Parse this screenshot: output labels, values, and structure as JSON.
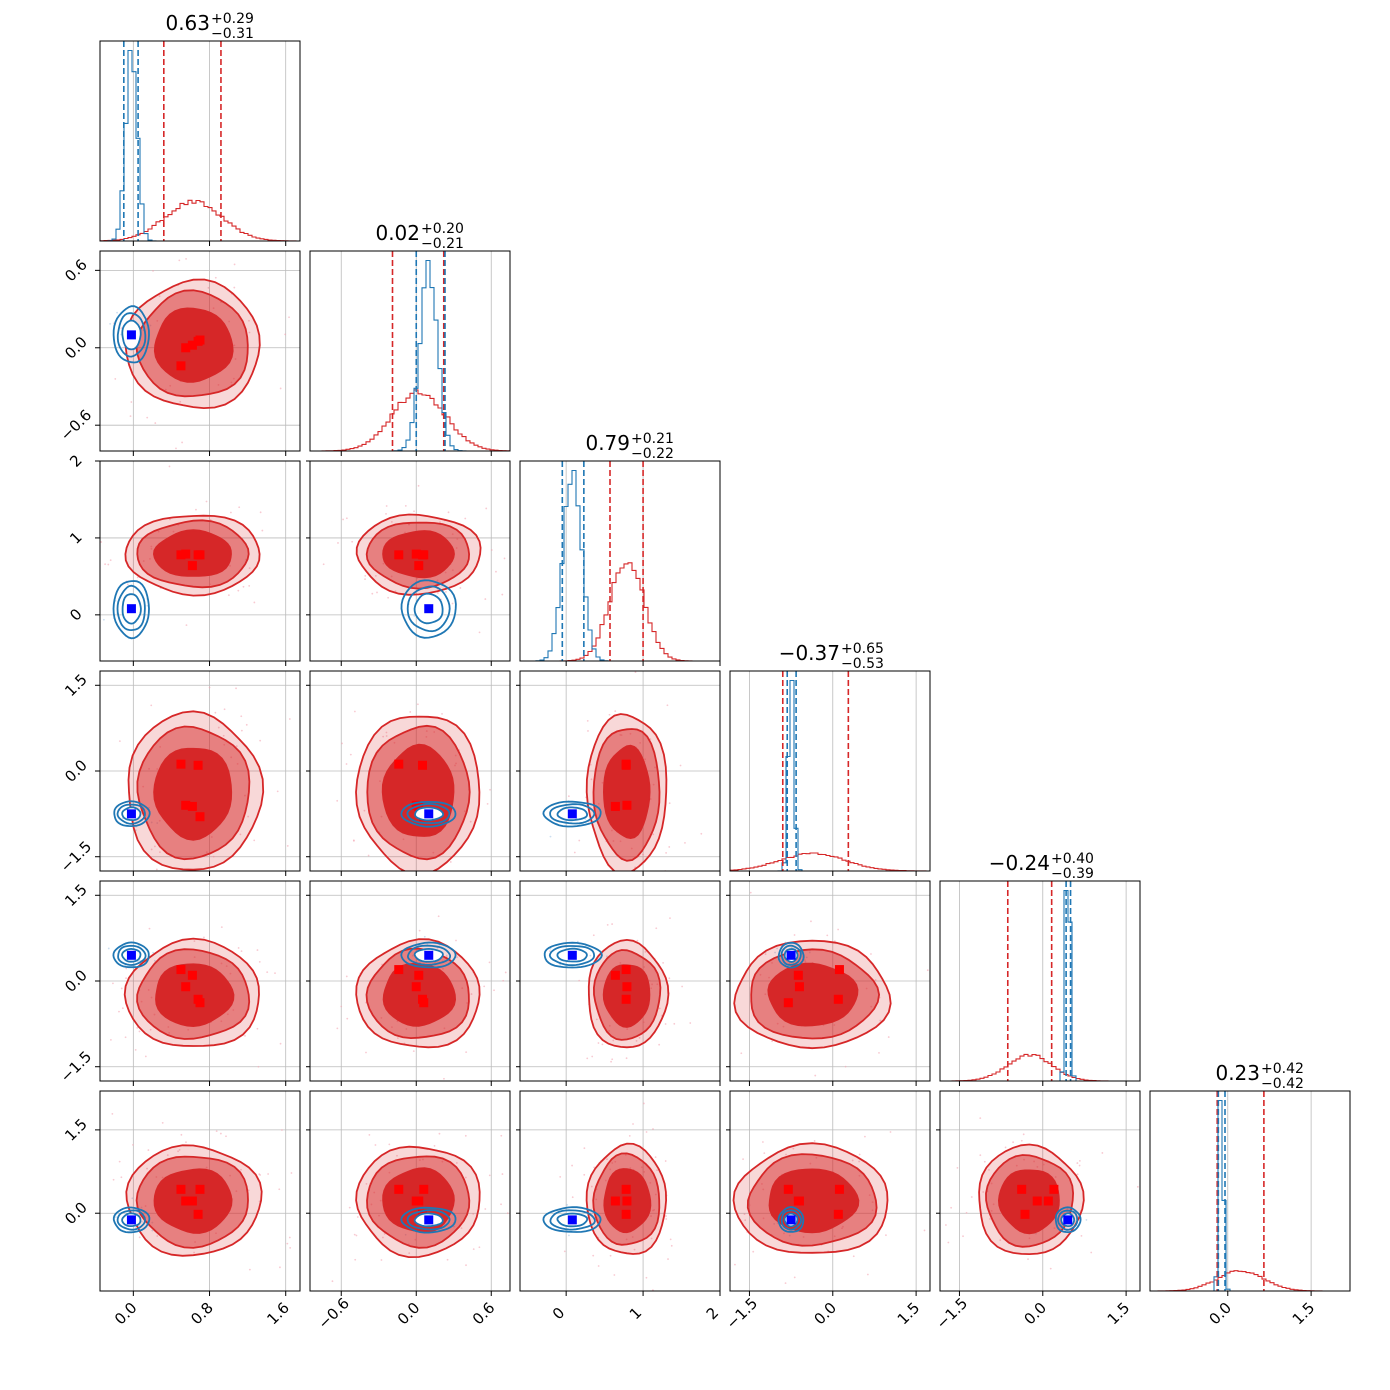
{
  "chart_data": {
    "type": "corner",
    "n_params": 6,
    "colors": {
      "series_red": "#d62728",
      "series_blue": "#1f77b4",
      "marker_red": "#ff0000",
      "marker_blue": "#0000ff",
      "grid": "#bbbbbb"
    },
    "grid": true,
    "titles": [
      {
        "median": "0.63",
        "plus": "+0.29",
        "minus": "−0.31"
      },
      {
        "median": "0.02",
        "plus": "+0.20",
        "minus": "−0.21"
      },
      {
        "median": "0.79",
        "plus": "+0.21",
        "minus": "−0.22"
      },
      {
        "median": "−0.37",
        "plus": "+0.65",
        "minus": "−0.53"
      },
      {
        "median": "−0.24",
        "plus": "+0.40",
        "minus": "−0.39"
      },
      {
        "median": "0.23",
        "plus": "+0.42",
        "minus": "−0.42"
      }
    ],
    "x_ranges": [
      [
        -0.35,
        1.75
      ],
      [
        -0.85,
        0.75
      ],
      [
        -0.6,
        2.0
      ],
      [
        -1.85,
        1.75
      ],
      [
        -1.85,
        1.75
      ],
      [
        -1.4,
        2.2
      ]
    ],
    "y_ranges": [
      null,
      [
        -0.8,
        0.75
      ],
      [
        -0.6,
        2.0
      ],
      [
        -1.75,
        1.75
      ],
      [
        -1.75,
        1.75
      ],
      [
        -1.4,
        2.2
      ]
    ],
    "x_ticks": [
      {
        "values": [
          0.0,
          0.8,
          1.6
        ],
        "labels": [
          "0.0",
          "0.8",
          "1.6"
        ]
      },
      {
        "values": [
          -0.6,
          0.0,
          0.6
        ],
        "labels": [
          "−0.6",
          "0.0",
          "0.6"
        ]
      },
      {
        "values": [
          0,
          1,
          2
        ],
        "labels": [
          "0",
          "1",
          "2"
        ]
      },
      {
        "values": [
          -1.5,
          0.0,
          1.5
        ],
        "labels": [
          "−1.5",
          "0.0",
          "1.5"
        ]
      },
      {
        "values": [
          -1.5,
          0.0,
          1.5
        ],
        "labels": [
          "−1.5",
          "0.0",
          "1.5"
        ]
      },
      {
        "values": [
          0.0,
          1.5
        ],
        "labels": [
          "0.0",
          "1.5"
        ]
      }
    ],
    "y_ticks": [
      null,
      {
        "values": [
          -0.6,
          0.0,
          0.6
        ],
        "labels": [
          "−0.6",
          "0.0",
          "0.6"
        ]
      },
      {
        "values": [
          0,
          1,
          2
        ],
        "labels": [
          "0",
          "1",
          "2"
        ]
      },
      {
        "values": [
          -1.5,
          0.0,
          1.5
        ],
        "labels": [
          "−1.5",
          "0.0",
          "1.5"
        ]
      },
      {
        "values": [
          -1.5,
          0.0,
          1.5
        ],
        "labels": [
          "−1.5",
          "0.0",
          "1.5"
        ]
      },
      {
        "values": [
          0.0,
          1.5
        ],
        "labels": [
          "0.0",
          "1.5"
        ]
      }
    ],
    "series": [
      {
        "color": "red",
        "means": [
          0.63,
          0.02,
          0.79,
          -0.37,
          -0.24,
          0.23
        ],
        "spreads": [
          0.3,
          0.21,
          0.22,
          0.59,
          0.4,
          0.42
        ],
        "quantile_lines": [
          [
            0.32,
            0.92
          ],
          [
            -0.19,
            0.22
          ],
          [
            0.57,
            1.0
          ],
          [
            -0.9,
            0.28
          ],
          [
            -0.63,
            0.16
          ],
          [
            -0.19,
            0.65
          ]
        ],
        "markers": [
          [
            0.5,
            0.55,
            0.62,
            0.68,
            0.7
          ],
          [
            -0.14,
            0.0,
            0.02,
            0.05,
            0.06
          ],
          [
            0.78,
            0.79,
            0.64,
            0.78
          ],
          [
            0.12,
            -0.6,
            -0.62,
            0.1,
            -0.8
          ],
          [
            0.2,
            -0.1,
            0.1,
            -0.32,
            -0.38
          ],
          [
            0.43,
            0.22,
            0.22,
            -0.02
          ]
        ]
      },
      {
        "color": "blue",
        "means": [
          -0.02,
          0.1,
          0.08,
          -0.75,
          0.45,
          -0.12
        ],
        "spreads": [
          0.06,
          0.07,
          0.12,
          0.05,
          0.04,
          0.04
        ],
        "quantile_lines": [
          [
            -0.1,
            0.05
          ],
          [
            0.0,
            0.23
          ],
          [
            -0.05,
            0.23
          ],
          [
            -0.82,
            -0.66
          ],
          [
            0.42,
            0.5
          ],
          [
            -0.17,
            -0.05
          ]
        ],
        "truth": [
          -0.02,
          0.1,
          0.08,
          -0.75,
          0.45,
          -0.12
        ]
      }
    ]
  }
}
